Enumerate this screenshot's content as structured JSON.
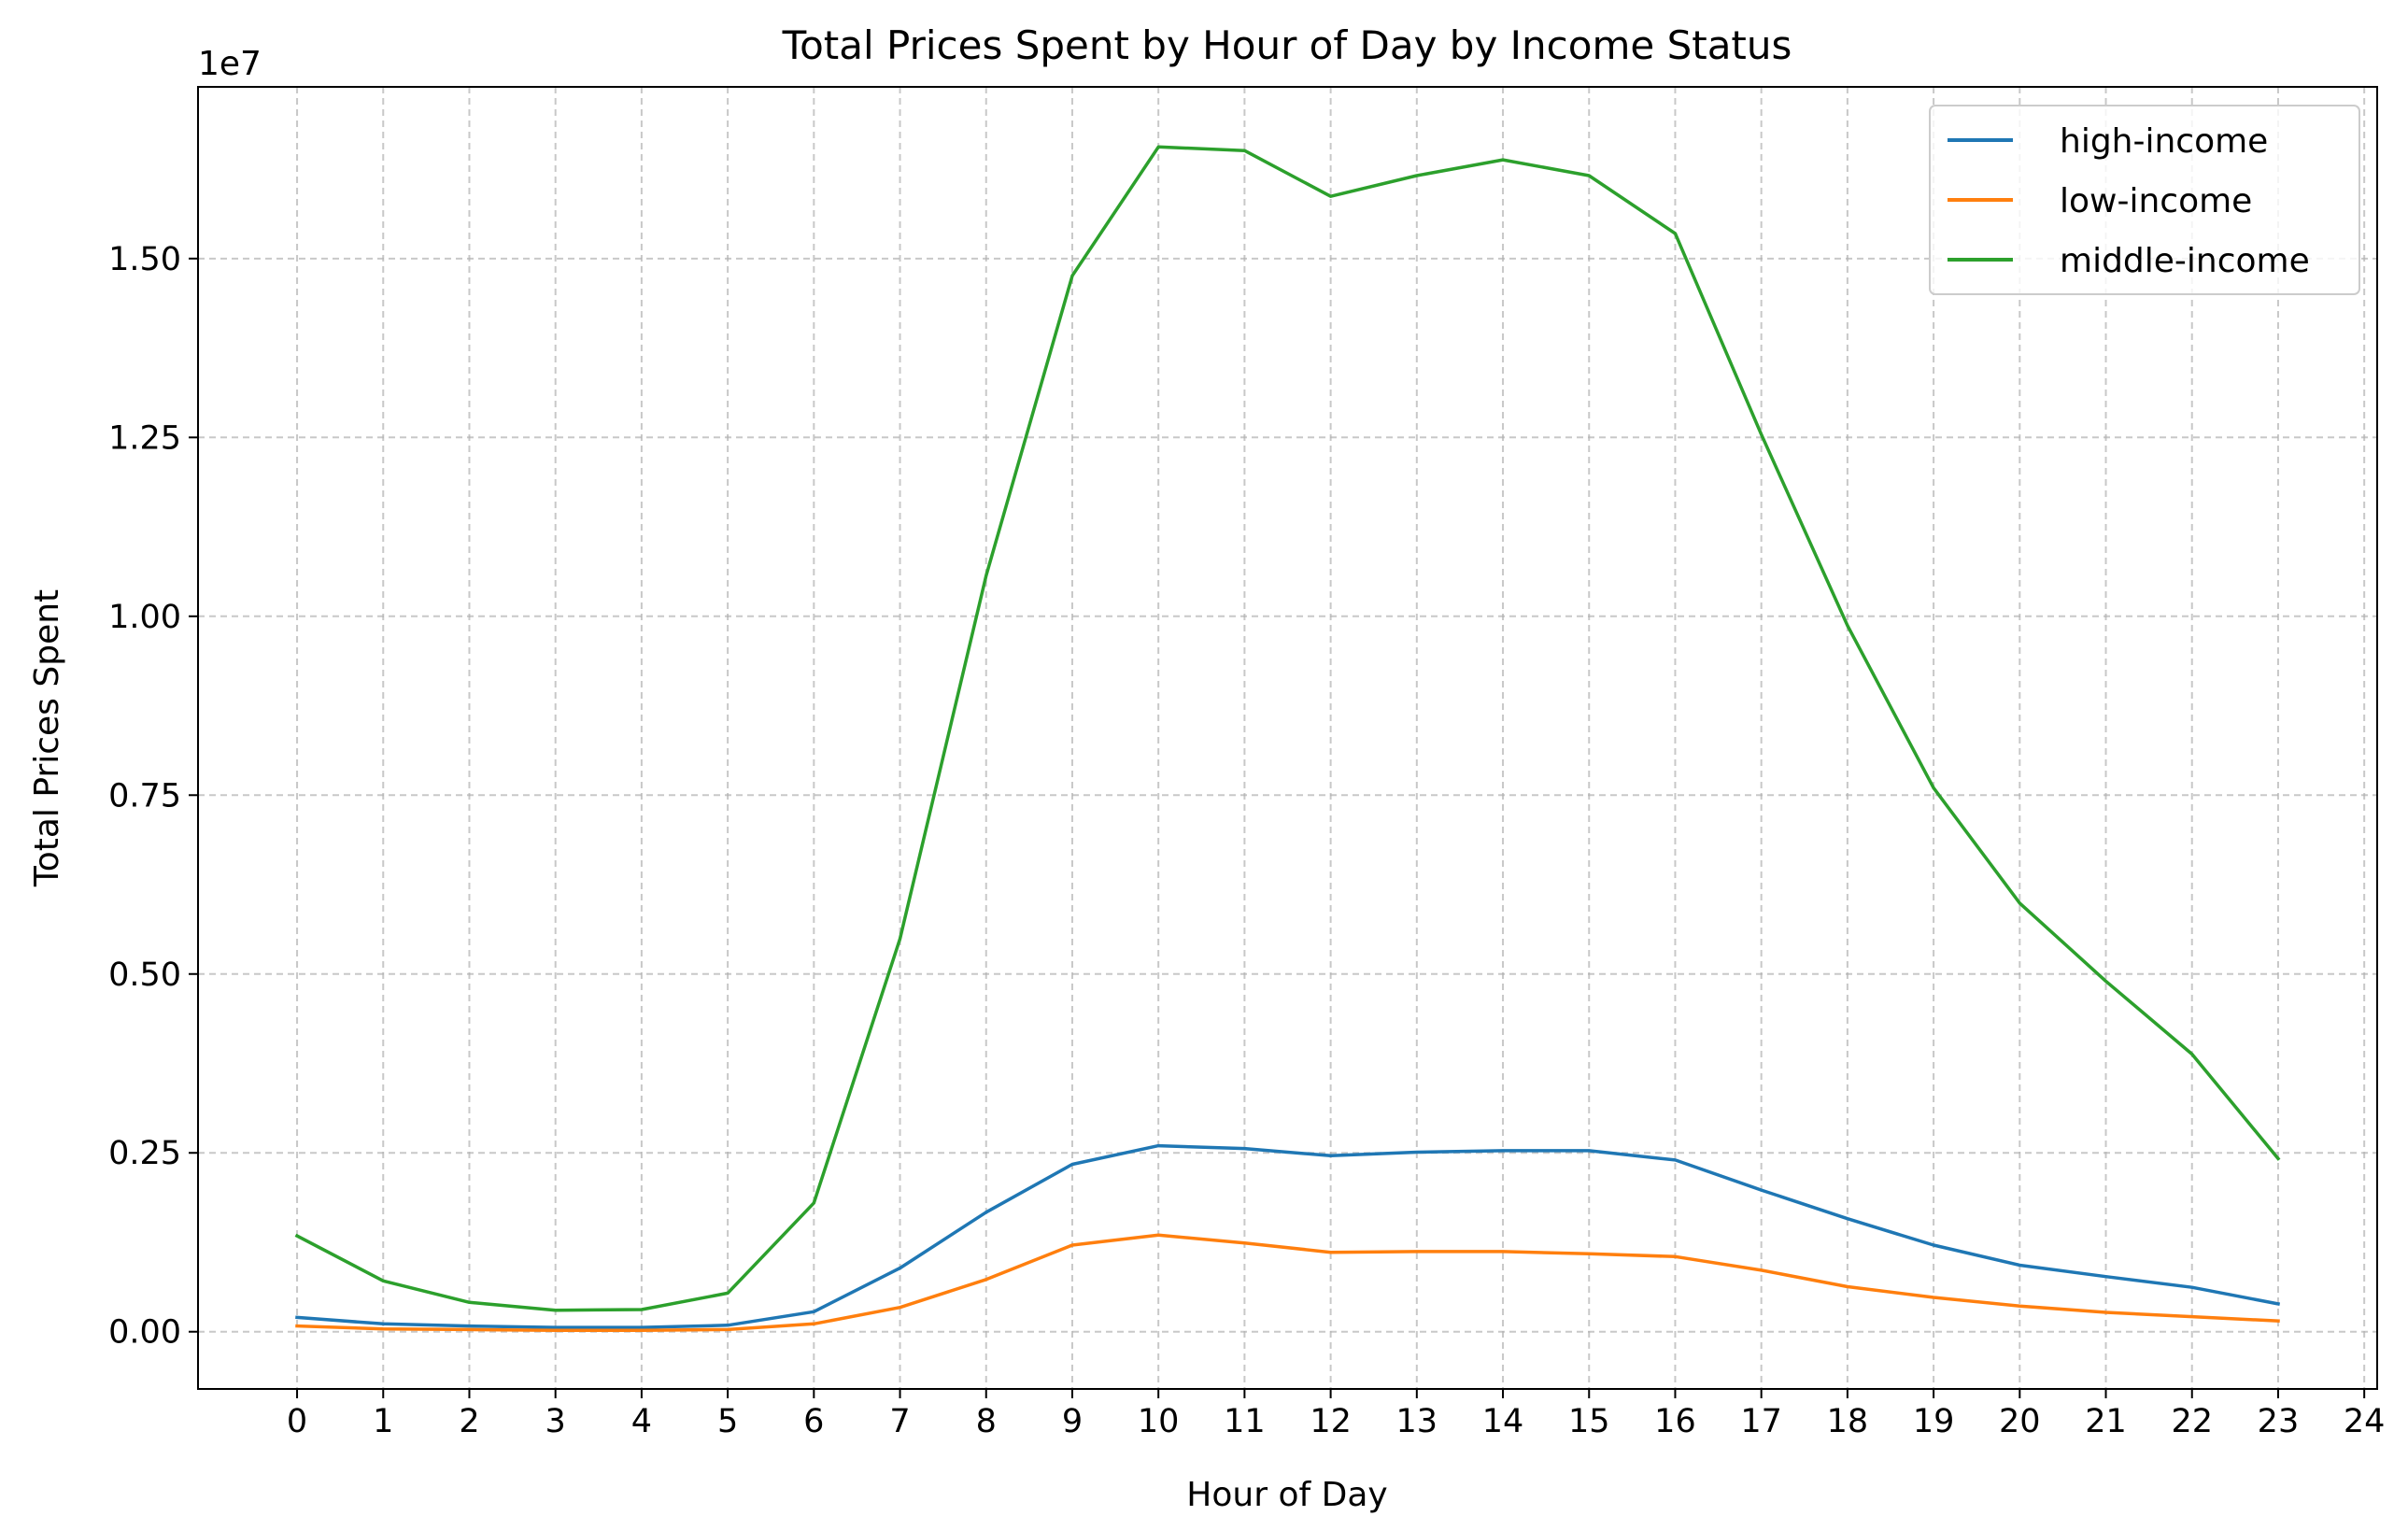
{
  "chart_data": {
    "type": "line",
    "title": "Total Prices Spent by Hour of Day by Income Status",
    "xlabel": "Hour of Day",
    "ylabel": "Total Prices Spent",
    "offset_text": "1e7",
    "x": [
      0,
      1,
      2,
      3,
      4,
      5,
      6,
      7,
      8,
      9,
      10,
      11,
      12,
      13,
      14,
      15,
      16,
      17,
      18,
      19,
      20,
      21,
      22,
      23
    ],
    "xlim": [
      -1.15,
      24.15
    ],
    "ylim": [
      -0.08,
      1.74
    ],
    "x_ticks": [
      0,
      1,
      2,
      3,
      4,
      5,
      6,
      7,
      8,
      9,
      10,
      11,
      12,
      13,
      14,
      15,
      16,
      17,
      18,
      19,
      20,
      21,
      22,
      23,
      24
    ],
    "x_tick_labels": [
      "0",
      "1",
      "2",
      "3",
      "4",
      "5",
      "6",
      "7",
      "8",
      "9",
      "10",
      "11",
      "12",
      "13",
      "14",
      "15",
      "16",
      "17",
      "18",
      "19",
      "20",
      "21",
      "22",
      "23",
      "24"
    ],
    "y_ticks": [
      0,
      0.25,
      0.5,
      0.75,
      1.0,
      1.25,
      1.5
    ],
    "y_tick_labels": [
      "0.00",
      "0.25",
      "0.50",
      "0.75",
      "1.00",
      "1.25",
      "1.50"
    ],
    "grid": true,
    "legend_position": "upper-right",
    "series": [
      {
        "name": "high-income",
        "color": "#1f77b4",
        "values": [
          0.02,
          0.011,
          0.008,
          0.006,
          0.006,
          0.009,
          0.028,
          0.089,
          0.167,
          0.234,
          0.26,
          0.256,
          0.246,
          0.251,
          0.253,
          0.253,
          0.24,
          0.198,
          0.158,
          0.121,
          0.093,
          0.077,
          0.062,
          0.039
        ]
      },
      {
        "name": "low-income",
        "color": "#ff7f0e",
        "values": [
          0.008,
          0.004,
          0.003,
          0.002,
          0.002,
          0.003,
          0.011,
          0.034,
          0.073,
          0.121,
          0.135,
          0.124,
          0.111,
          0.112,
          0.112,
          0.109,
          0.105,
          0.086,
          0.063,
          0.048,
          0.036,
          0.027,
          0.021,
          0.015
        ]
      },
      {
        "name": "middle-income",
        "color": "#2ca02c",
        "values": [
          0.134,
          0.071,
          0.041,
          0.03,
          0.031,
          0.054,
          0.18,
          0.549,
          1.057,
          1.476,
          1.656,
          1.651,
          1.587,
          1.616,
          1.638,
          1.616,
          1.535,
          1.254,
          0.987,
          0.76,
          0.599,
          0.49,
          0.388,
          0.242
        ]
      }
    ]
  }
}
